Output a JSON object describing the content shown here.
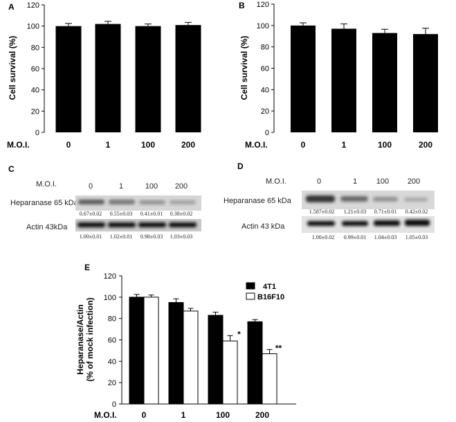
{
  "chart_data": [
    {
      "panel": "A",
      "type": "bar",
      "ylabel": "Cell survival (%)",
      "xlabel": "M.O.I.",
      "categories": [
        "0",
        "1",
        "100",
        "200"
      ],
      "values": [
        100,
        102,
        100,
        101
      ],
      "errors": [
        2.5,
        2.5,
        2,
        2.5
      ],
      "ylim": [
        0,
        120
      ],
      "yticks": [
        "0",
        "20",
        "40",
        "60",
        "80",
        "100",
        "120"
      ]
    },
    {
      "panel": "B",
      "type": "bar",
      "ylabel": "Cell survival (%)",
      "xlabel": "M.O.I.",
      "categories": [
        "0",
        "1",
        "100",
        "200"
      ],
      "values": [
        100,
        97,
        93,
        92
      ],
      "errors": [
        2.5,
        4.5,
        3.5,
        5.5
      ],
      "ylim": [
        0,
        120
      ],
      "yticks": [
        "0",
        "20",
        "40",
        "60",
        "80",
        "100",
        "120"
      ]
    },
    {
      "panel": "E",
      "type": "bar",
      "ylabel_line1": "Heparanase/Actin",
      "ylabel_line2": "(% of mock infection)",
      "xlabel": "M.O.I.",
      "categories": [
        "0",
        "1",
        "100",
        "200"
      ],
      "series": [
        {
          "name": "4T1",
          "values": [
            100,
            95,
            83,
            77
          ],
          "errors": [
            2.5,
            3.5,
            3,
            2
          ],
          "fill": "#000000"
        },
        {
          "name": "B16F10",
          "values": [
            100,
            87,
            59,
            47
          ],
          "errors": [
            2,
            2.5,
            5,
            4
          ],
          "fill": "#ffffff"
        }
      ],
      "annotations": [
        "",
        "",
        "*",
        "**"
      ],
      "ylim": [
        0,
        120
      ],
      "yticks": [
        "0",
        "20",
        "40",
        "60",
        "80",
        "100",
        "120"
      ]
    }
  ],
  "blots": {
    "C": {
      "letter": "C",
      "moi_label": "M.O.I.",
      "lanes": [
        "0",
        "1",
        "100",
        "200"
      ],
      "hep_label": "Heparanase 65 kDa",
      "actin_label": "Actin 43kDa",
      "hep_quant": [
        "0.67±0.02",
        "0.55±0.03",
        "0.41±0.01",
        "0.38±0.02"
      ],
      "actin_quant": [
        "1.00±0.01",
        "1.02±0.01",
        "0.98±0.03",
        "1.03±0.03"
      ]
    },
    "D": {
      "letter": "D",
      "moi_label": "M.O.I.",
      "lanes": [
        "0",
        "1",
        "100",
        "200"
      ],
      "hep_label": "Heparanase  65 kDa",
      "actin_label": "Actin 43 kDa",
      "hep_quant": [
        "1.587±0.02",
        "1.21±0.03",
        "0.71±0.01",
        "0.42±0.02"
      ],
      "actin_quant": [
        "1.00±0.02",
        "0.99±0.01",
        "1.04±0.03",
        "1.05±0.03"
      ]
    }
  }
}
